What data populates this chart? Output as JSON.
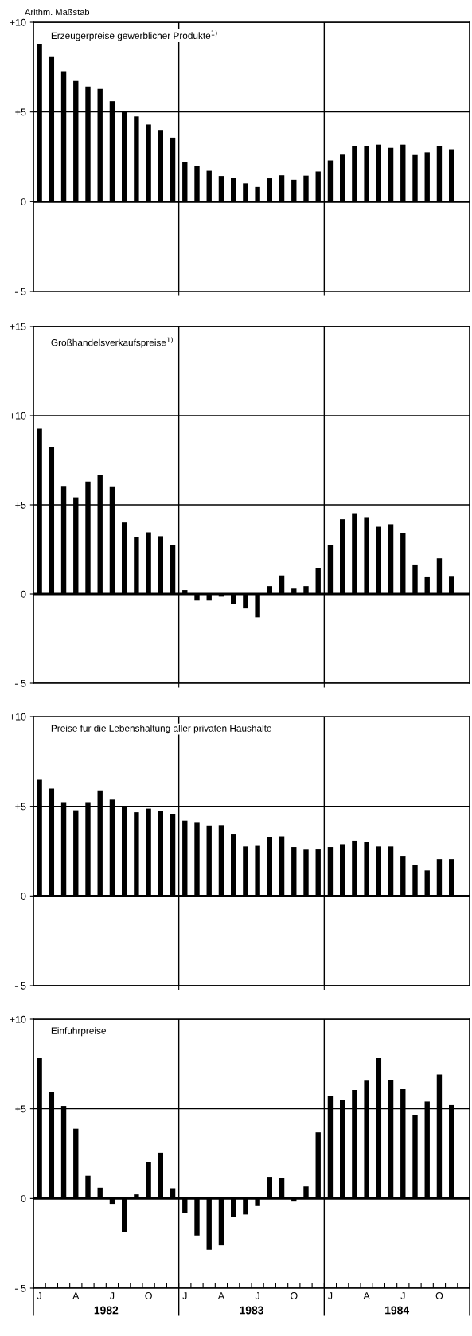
{
  "chart_data": [
    {
      "type": "bar",
      "title": "Erzeugerpreise gewerblicher Produkte$^{1)}$",
      "annotations": [
        "Arithm. Maßstab"
      ],
      "categories": [
        null,
        null,
        null,
        null,
        null,
        null,
        null,
        null,
        null,
        null,
        null,
        null,
        null,
        null,
        null,
        null,
        null,
        null,
        null,
        null,
        null,
        null,
        null,
        null,
        null,
        null,
        null,
        null,
        null,
        null,
        null,
        null,
        null,
        null,
        null,
        null
      ],
      "values": [
        8.8,
        8.1,
        7.27,
        6.73,
        6.42,
        6.28,
        5.6,
        5.0,
        4.75,
        4.3,
        4.0,
        3.57,
        2.2,
        1.97,
        1.72,
        1.43,
        1.33,
        1.02,
        0.82,
        1.3,
        1.47,
        1.22,
        1.45,
        1.68,
        2.3,
        2.62,
        3.08,
        3.08,
        3.18,
        3.0,
        3.18,
        2.6,
        2.75,
        3.12,
        2.92,
        null
      ],
      "color": "#000000",
      "ylim": [
        -5,
        10
      ],
      "yticks": [
        {
          "value": 10,
          "label": "+10"
        },
        {
          "value": 5,
          "label": "+5"
        },
        0,
        {
          "value": -5,
          "label": "- 5"
        }
      ],
      "grid": "y",
      "tick_labels": "y",
      "ref_lines": [
        {
          "axis": "y",
          "value": 0
        }
      ]
    },
    {
      "type": "bar",
      "title": "Großhandelsverkaufspreise$^{1)}$",
      "categories": [
        null,
        null,
        null,
        null,
        null,
        null,
        null,
        null,
        null,
        null,
        null,
        null,
        null,
        null,
        null,
        null,
        null,
        null,
        null,
        null,
        null,
        null,
        null,
        null,
        null,
        null,
        null,
        null,
        null,
        null,
        null,
        null,
        null,
        null,
        null,
        null
      ],
      "values": [
        9.26,
        8.25,
        6.02,
        5.42,
        6.31,
        6.68,
        5.99,
        4.01,
        3.17,
        3.46,
        3.24,
        2.73,
        0.22,
        -0.37,
        -0.37,
        -0.15,
        -0.54,
        -0.81,
        -1.31,
        0.44,
        1.04,
        0.3,
        0.44,
        1.46,
        2.73,
        4.19,
        4.53,
        4.31,
        3.77,
        3.91,
        3.41,
        1.61,
        0.94,
        2.0,
        0.97,
        null
      ],
      "color": "#000000",
      "ylim": [
        -5,
        15
      ],
      "yticks": [
        {
          "value": 15,
          "label": "+15"
        },
        {
          "value": 10,
          "label": "+10"
        },
        {
          "value": 5,
          "label": "+5"
        },
        0,
        {
          "value": -5,
          "label": "- 5"
        }
      ],
      "grid": "y",
      "tick_labels": "y",
      "ref_lines": [
        {
          "axis": "y",
          "value": 0
        }
      ]
    },
    {
      "type": "bar",
      "title": "Preise fur die Lebenshaltung aller privaten Haushalte",
      "categories": [
        null,
        null,
        null,
        null,
        null,
        null,
        null,
        null,
        null,
        null,
        null,
        null,
        null,
        null,
        null,
        null,
        null,
        null,
        null,
        null,
        null,
        null,
        null,
        null,
        null,
        null,
        null,
        null,
        null,
        null,
        null,
        null,
        null,
        null,
        null,
        null
      ],
      "values": [
        6.47,
        5.98,
        5.23,
        4.78,
        5.23,
        5.88,
        5.37,
        4.95,
        4.67,
        4.87,
        4.72,
        4.55,
        4.2,
        4.08,
        3.93,
        3.95,
        3.43,
        2.75,
        2.83,
        3.3,
        3.32,
        2.72,
        2.62,
        2.63,
        2.72,
        2.88,
        3.08,
        3.0,
        2.75,
        2.75,
        2.23,
        1.72,
        1.42,
        2.05,
        2.05,
        null
      ],
      "color": "#000000",
      "ylim": [
        -5,
        10
      ],
      "yticks": [
        {
          "value": 10,
          "label": "+10"
        },
        {
          "value": 5,
          "label": "+5"
        },
        0,
        {
          "value": -5,
          "label": "- 5"
        }
      ],
      "grid": "y",
      "tick_labels": "y",
      "ref_lines": [
        {
          "axis": "y",
          "value": 0
        }
      ]
    },
    {
      "type": "bar",
      "title": "Einfuhrpreise",
      "annotations": [
        "1982",
        "1983",
        "1984"
      ],
      "categories": [
        "J",
        null,
        null,
        "A",
        null,
        null,
        "J",
        null,
        null,
        "O",
        null,
        null,
        "J",
        null,
        null,
        "A",
        null,
        null,
        "J",
        null,
        null,
        "O",
        null,
        null,
        "J",
        null,
        null,
        "A",
        null,
        null,
        "J",
        null,
        null,
        "O",
        null,
        null
      ],
      "values": [
        7.82,
        5.93,
        5.16,
        3.89,
        1.27,
        0.6,
        -0.3,
        -1.89,
        0.23,
        2.04,
        2.55,
        0.57,
        -0.8,
        -2.06,
        -2.86,
        -2.61,
        -1.02,
        -0.89,
        -0.42,
        1.21,
        1.14,
        -0.17,
        0.67,
        3.69,
        5.7,
        5.51,
        6.05,
        6.57,
        7.82,
        6.6,
        6.1,
        4.67,
        5.41,
        6.92,
        5.21,
        null
      ],
      "color": "#000000",
      "ylim": [
        -5,
        10
      ],
      "yticks": [
        {
          "value": 10,
          "label": "+10"
        },
        {
          "value": 5,
          "label": "+5"
        },
        0,
        {
          "value": -5,
          "label": "- 5"
        }
      ],
      "grid": "y",
      "ref_lines": [
        {
          "axis": "y",
          "value": 0
        }
      ]
    }
  ]
}
